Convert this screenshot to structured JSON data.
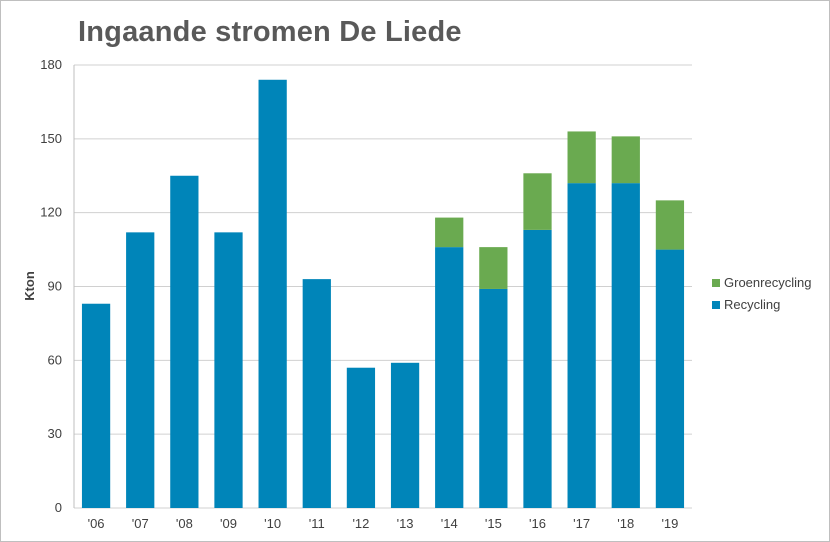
{
  "chart_data": {
    "type": "bar",
    "stacked": true,
    "title": "Ingaande stromen De Liede",
    "xlabel": "",
    "ylabel": "Kton",
    "ylim": [
      0,
      180
    ],
    "yticks": [
      0,
      30,
      60,
      90,
      120,
      150,
      180
    ],
    "grid": true,
    "legend_position": "right",
    "categories": [
      "'06",
      "'07",
      "'08",
      "'09",
      "'10",
      "'11",
      "'12",
      "'13",
      "'14",
      "'15",
      "'16",
      "'17",
      "'18",
      "'19"
    ],
    "series": [
      {
        "name": "Recycling",
        "color": "#0085b9",
        "values": [
          83,
          112,
          135,
          112,
          174,
          93,
          57,
          59,
          106,
          89,
          113,
          132,
          132,
          105
        ]
      },
      {
        "name": "Groenrecycling",
        "color": "#6aaa50",
        "values": [
          0,
          0,
          0,
          0,
          0,
          0,
          0,
          0,
          12,
          17,
          23,
          21,
          19,
          20
        ]
      }
    ]
  }
}
